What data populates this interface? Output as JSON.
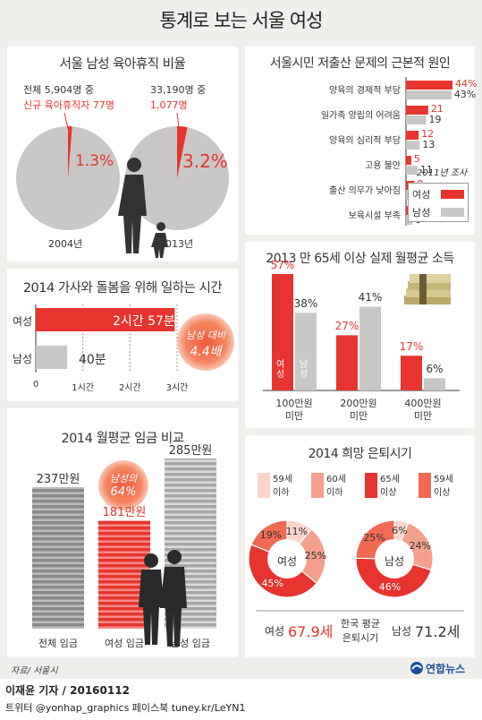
{
  "title": "통계로 보는 서울 여성",
  "parental_leave": {
    "title": "서울 남성 육아휴직 비율",
    "y2004": {
      "total": "전체 5,904명 중",
      "male": "신규 육아휴직자 77명",
      "pct": "1.3%",
      "year": "2004년"
    },
    "y2013": {
      "total": "33,190명 중",
      "male": "1,077명",
      "pct": "3.2%",
      "year": "2013년"
    }
  },
  "housework": {
    "title": "2014 가사와 돌봄을 위해 일하는 시간",
    "female_label": "여성",
    "female_value": "2시간 57분",
    "male_label": "남성",
    "male_value": "40분",
    "ticks": [
      "0",
      "1시간",
      "2시간",
      "3시간"
    ],
    "badge_line1": "남성 대비",
    "badge_line2": "4.4배"
  },
  "wage": {
    "title": "2014 월평균 임금 비교",
    "bars": [
      {
        "label": "전체 임금",
        "value": "237만원"
      },
      {
        "label": "여성 임금",
        "value": "181만원"
      },
      {
        "label": "남성 임금",
        "value": "285만원"
      }
    ],
    "badge_line1": "남성의",
    "badge_line2": "64%"
  },
  "low_birth": {
    "title": "서울시민 저출산 문제의 근본적 원인",
    "year_label": "2011년 조사",
    "legend_female": "여성",
    "legend_male": "남성",
    "colors": {
      "female": "#e8342e",
      "male": "#c8c7c5"
    }
  },
  "elderly_income": {
    "title": "2013 만 65세 이상 실제 월평균 소득",
    "female_label": "여성",
    "male_label": "남성"
  },
  "retirement": {
    "title": "2014 희망 은퇴시기",
    "legend": [
      "59세 이하",
      "60세 이하",
      "65세 이상",
      "59세 이상"
    ],
    "female_center": "여성",
    "male_center": "남성",
    "avg_female_label": "여성",
    "avg_female_value": "67.9세",
    "avg_male_label": "남성",
    "avg_male_value": "71.2세",
    "avg_mid_line1": "한국 평균",
    "avg_mid_line2": "은퇴시기"
  },
  "footer": {
    "source": "자료/ 서울시",
    "reporter": "이재윤 기자 / 20160112",
    "social": "트위터 @yonhap_graphics 페이스북 tuney.kr/LeYN1",
    "logo": "연합뉴스"
  },
  "chart_data": [
    {
      "type": "pie",
      "title": "서울 남성 육아휴직 비율",
      "categories": [
        "2004년",
        "2013년"
      ],
      "values": [
        1.3,
        3.2
      ],
      "unit": "%"
    },
    {
      "type": "bar",
      "title": "2014 가사와 돌봄을 위해 일하는 시간",
      "categories": [
        "여성",
        "남성"
      ],
      "values": [
        177,
        40
      ],
      "unit": "분",
      "xlim": [
        0,
        210
      ],
      "tick_labels": [
        "0",
        "1시간",
        "2시간",
        "3시간"
      ]
    },
    {
      "type": "bar",
      "title": "2014 월평균 임금 비교",
      "categories": [
        "전체 임금",
        "여성 임금",
        "남성 임금"
      ],
      "values": [
        237,
        181,
        285
      ],
      "unit": "만원"
    },
    {
      "type": "bar",
      "title": "서울시민 저출산 문제의 근본적 원인",
      "categories": [
        "양육의 경제적 부담",
        "일가족 양립의 어려움",
        "양육의 심리적 부담",
        "고용 불안",
        "출산 의무가 낮아짐",
        "보육시설 부족"
      ],
      "series": [
        {
          "name": "여성",
          "values": [
            44,
            21,
            12,
            5,
            8,
            6
          ]
        },
        {
          "name": "남성",
          "values": [
            43,
            19,
            13,
            11,
            9,
            6
          ]
        }
      ],
      "unit": "%",
      "xlim": [
        0,
        45
      ]
    },
    {
      "type": "bar",
      "title": "2013 만 65세 이상 실제 월평균 소득",
      "categories": [
        "100만원 미만",
        "200만원 미만",
        "400만원 미만"
      ],
      "series": [
        {
          "name": "여성",
          "values": [
            57,
            27,
            17
          ]
        },
        {
          "name": "남성",
          "values": [
            38,
            41,
            6
          ]
        }
      ],
      "unit": "%",
      "ylim": [
        0,
        60
      ]
    },
    {
      "type": "pie",
      "title": "2014 희망 은퇴시기",
      "categories": [
        "59세 이하",
        "60세 이하",
        "65세 이상",
        "59세 이상"
      ],
      "series": [
        {
          "name": "여성",
          "values": [
            11,
            25,
            45,
            19
          ]
        },
        {
          "name": "남성",
          "values": [
            6,
            24,
            46,
            25
          ]
        }
      ],
      "unit": "%"
    }
  ]
}
